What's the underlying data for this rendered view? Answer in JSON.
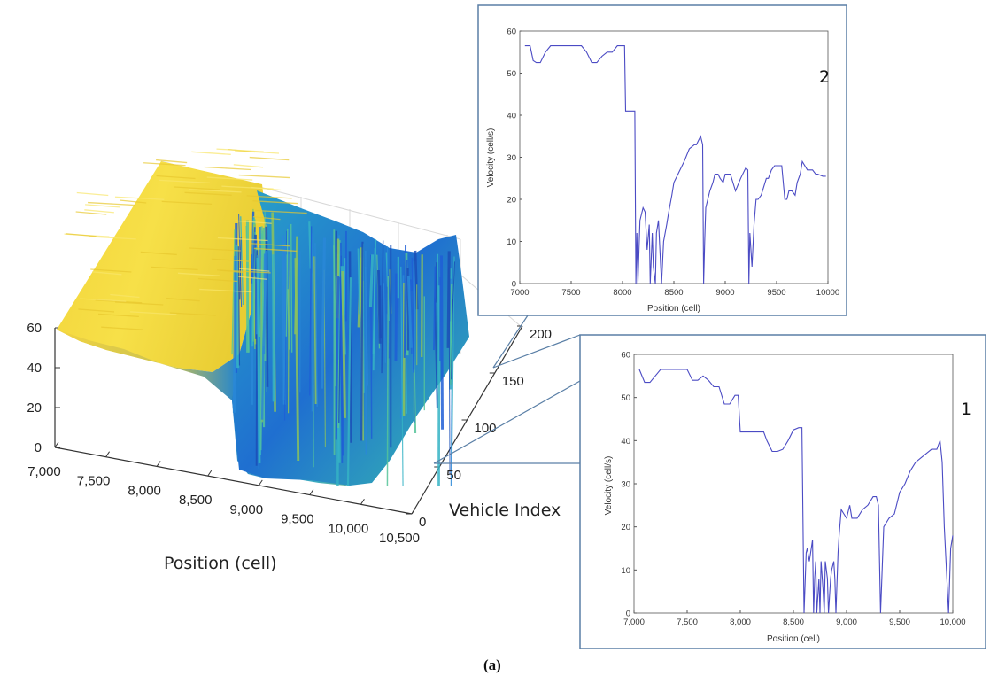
{
  "caption": "(a)",
  "chart_data": [
    {
      "type": "surface",
      "xlabel": "Position (cell)",
      "ylabel": "Vehicle Index",
      "zlabel": "",
      "xticks": [
        "7,000",
        "7,500",
        "8,000",
        "8,500",
        "9,000",
        "9,500",
        "10,000",
        "10,500"
      ],
      "yticks": [
        "0",
        "50",
        "100",
        "150",
        "200"
      ],
      "zticks": [
        "0",
        "20",
        "40",
        "60"
      ],
      "xlim": [
        7000,
        10500
      ],
      "ylim": [
        0,
        200
      ],
      "zlim": [
        0,
        60
      ],
      "colormap": "parula",
      "description_free_flow_region": [
        7000,
        8300
      ],
      "grid": true
    },
    {
      "type": "line",
      "label": "2",
      "xlabel": "Position (cell)",
      "ylabel": "Velocity (cell/s)",
      "xticks": [
        "7000",
        "7500",
        "8000",
        "8500",
        "9000",
        "9500",
        "10000"
      ],
      "yticks": [
        "0",
        "10",
        "20",
        "30",
        "40",
        "50",
        "60"
      ],
      "xlim": [
        7000,
        10000
      ],
      "ylim": [
        0,
        60
      ],
      "color": "#4b4bc4",
      "x": [
        7050,
        7100,
        7130,
        7160,
        7200,
        7250,
        7300,
        7600,
        7650,
        7700,
        7750,
        7800,
        7850,
        7900,
        7950,
        8000,
        8020,
        8030,
        8080,
        8110,
        8120,
        8130,
        8140,
        8150,
        8170,
        8200,
        8220,
        8240,
        8260,
        8270,
        8290,
        8300,
        8320,
        8330,
        8350,
        8370,
        8380,
        8400,
        8430,
        8450,
        8480,
        8500,
        8550,
        8600,
        8650,
        8700,
        8720,
        8740,
        8760,
        8780,
        8790,
        8800,
        8810,
        8830,
        8850,
        8880,
        8900,
        8930,
        8950,
        8980,
        9000,
        9050,
        9100,
        9150,
        9200,
        9220,
        9230,
        9240,
        9260,
        9280,
        9300,
        9320,
        9350,
        9400,
        9420,
        9450,
        9480,
        9500,
        9550,
        9580,
        9600,
        9620,
        9650,
        9680,
        9700,
        9730,
        9750,
        9800,
        9830,
        9850,
        9880,
        9900,
        9950,
        9980
      ],
      "y": [
        56.5,
        56.5,
        53,
        52.5,
        52.5,
        55,
        56.5,
        56.5,
        55,
        52.5,
        52.5,
        54,
        55,
        55,
        56.5,
        56.5,
        56.5,
        41,
        41,
        41,
        41,
        0,
        12,
        0,
        15,
        18,
        17,
        8,
        14,
        0,
        12,
        4,
        0,
        12,
        15,
        5,
        0,
        10,
        14,
        17,
        21,
        24,
        26.5,
        29,
        32,
        33,
        33,
        34,
        35,
        33,
        0,
        10,
        18,
        20,
        22,
        24,
        26,
        26,
        25,
        24,
        26,
        26,
        22,
        25,
        27.5,
        27,
        0,
        12,
        4,
        14,
        20,
        20,
        21,
        25,
        25,
        27,
        28,
        28,
        28,
        20,
        20,
        22,
        22,
        21,
        24,
        26,
        29,
        27,
        27,
        27,
        26,
        26,
        25.5,
        25.5
      ]
    },
    {
      "type": "line",
      "label": "1",
      "xlabel": "Position (cell)",
      "ylabel": "Velocity (cell/s)",
      "xticks": [
        "7,000",
        "7,500",
        "8,000",
        "8,500",
        "9,000",
        "9,500",
        "10,000"
      ],
      "yticks": [
        "0",
        "10",
        "20",
        "30",
        "40",
        "50",
        "60"
      ],
      "xlim": [
        7000,
        10000
      ],
      "ylim": [
        0,
        60
      ],
      "color": "#4b4bc4",
      "x": [
        7050,
        7100,
        7150,
        7200,
        7250,
        7300,
        7400,
        7500,
        7550,
        7600,
        7650,
        7700,
        7750,
        7800,
        7850,
        7900,
        7950,
        7980,
        8000,
        8100,
        8200,
        8220,
        8250,
        8300,
        8330,
        8350,
        8400,
        8450,
        8500,
        8550,
        8580,
        8600,
        8620,
        8630,
        8650,
        8680,
        8690,
        8700,
        8710,
        8720,
        8740,
        8750,
        8760,
        8780,
        8790,
        8800,
        8820,
        8830,
        8850,
        8860,
        8880,
        8890,
        8900,
        8920,
        8930,
        8950,
        9000,
        9030,
        9050,
        9100,
        9150,
        9200,
        9250,
        9280,
        9300,
        9320,
        9350,
        9400,
        9450,
        9500,
        9550,
        9600,
        9650,
        9700,
        9750,
        9800,
        9850,
        9880,
        9900,
        9920,
        9940,
        9960,
        9980,
        10000
      ],
      "y": [
        56.5,
        53.5,
        53.5,
        55,
        56.5,
        56.5,
        56.5,
        56.5,
        54,
        54,
        55,
        54,
        52.5,
        52.5,
        48.5,
        48.5,
        50.5,
        50.5,
        42,
        42,
        42,
        42,
        40,
        37.5,
        37.5,
        37.5,
        38,
        40,
        42.5,
        43,
        43,
        0,
        14,
        15,
        12,
        17,
        0,
        8,
        12,
        0,
        8,
        0,
        12,
        5,
        0,
        12,
        8,
        0,
        8,
        10,
        12,
        8,
        0,
        14,
        18,
        24,
        22,
        25,
        22,
        22,
        24,
        25,
        27,
        27,
        25,
        0,
        20,
        22,
        23,
        28,
        30,
        33,
        35,
        36,
        37,
        38,
        38,
        40,
        35,
        20,
        10,
        0,
        15,
        18
      ]
    }
  ]
}
